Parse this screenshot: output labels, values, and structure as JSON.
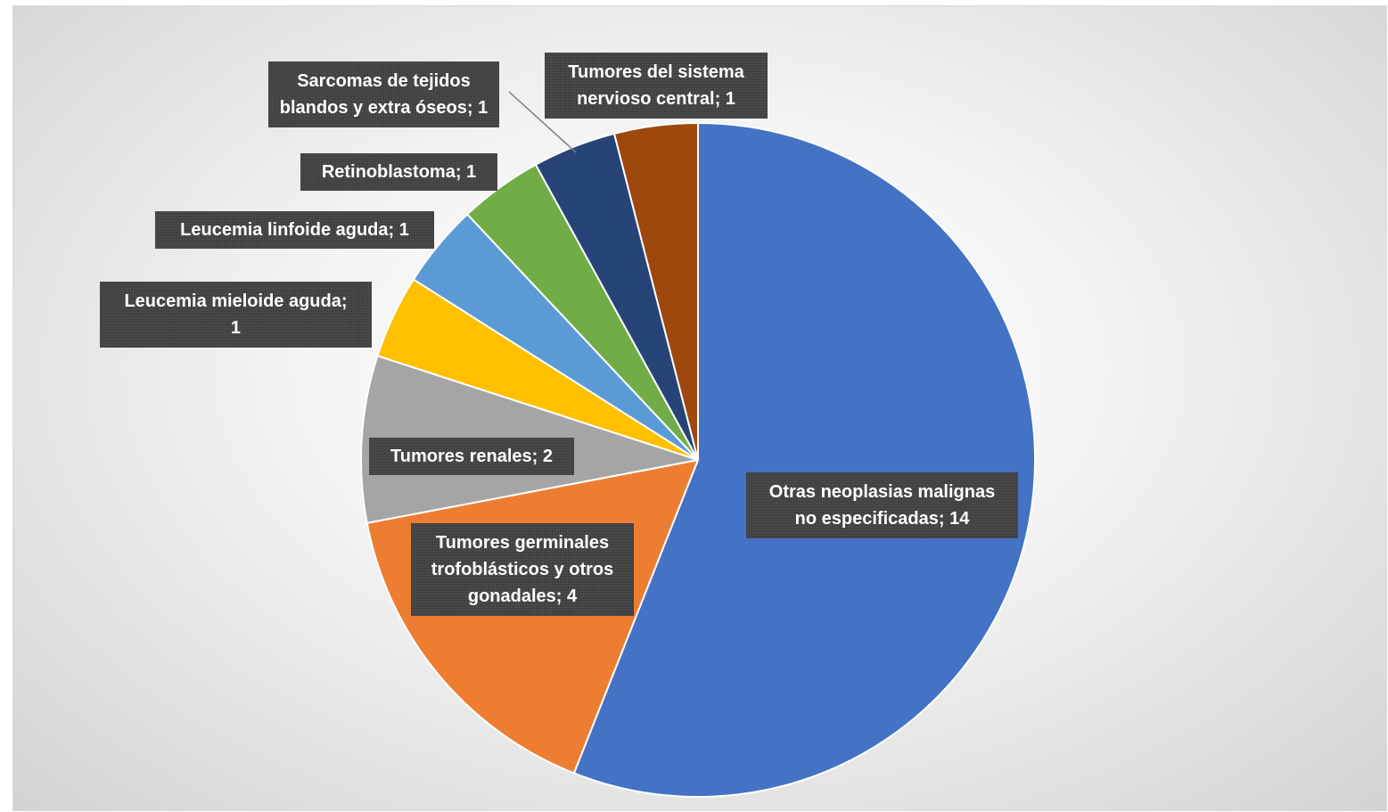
{
  "chart_data": {
    "type": "pie",
    "title": "",
    "start_angle_deg": 0,
    "direction": "clockwise",
    "legend": "none",
    "categories": [
      "Otras neoplasias malignas no especificadas",
      "Tumores germinales trofoblásticos y otros gonadales",
      "Tumores renales",
      "Leucemia mieloide aguda",
      "Leucemia linfoide aguda",
      "Retinoblastoma",
      "Sarcomas de tejidos blandos y extra óseos",
      "Tumores del sistema nervioso central"
    ],
    "values": [
      14,
      4,
      2,
      1,
      1,
      1,
      1,
      1
    ],
    "colors": [
      "#4472C4",
      "#ED7D31",
      "#A5A5A5",
      "#FFC000",
      "#5B9BD5",
      "#70AD47",
      "#264478",
      "#9E480E"
    ],
    "data_labels": [
      "Otras neoplasias malignas\nno especificadas; 14",
      "Tumores germinales\ntrofoblásticos y otros\ngonadales; 4",
      "Tumores renales; 2",
      "Leucemia mieloide aguda;\n1",
      "Leucemia linfoide aguda; 1",
      "Retinoblastoma; 1",
      "Sarcomas de tejidos\nblandos y extra óseos; 1",
      "Tumores del sistema\nnervioso central; 1"
    ]
  }
}
